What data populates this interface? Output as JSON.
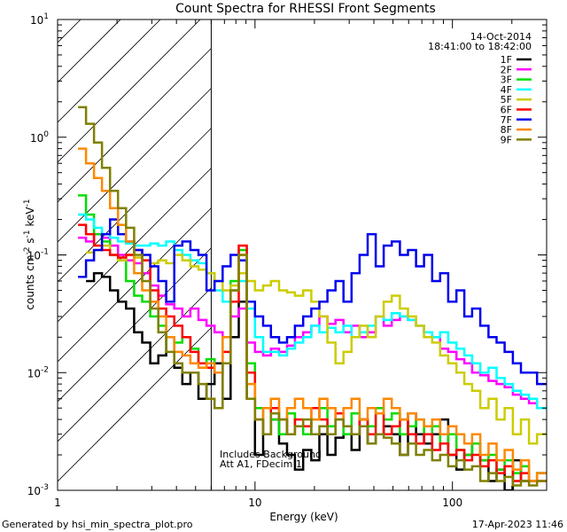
{
  "chart_data": {
    "type": "line",
    "title": "Count Spectra for RHESSI Front Segments",
    "xlabel": "Energy (keV)",
    "ylabel": "counts cm",
    "ylabel_parts": [
      "counts cm",
      "-2",
      " s",
      "-1",
      " keV",
      "-1"
    ],
    "x_scale": "log",
    "y_scale": "log",
    "xlim": [
      1,
      300
    ],
    "ylim": [
      0.001,
      10
    ],
    "x_ticks": [
      {
        "value": 1,
        "label": "1"
      },
      {
        "value": 10,
        "label": "10"
      },
      {
        "value": 100,
        "label": "100"
      }
    ],
    "y_ticks": [
      {
        "value": 0.001,
        "base": "10",
        "exp": "-3"
      },
      {
        "value": 0.01,
        "base": "10",
        "exp": "-2"
      },
      {
        "value": 0.1,
        "base": "10",
        "exp": "-1"
      },
      {
        "value": 1,
        "base": "10",
        "exp": "0"
      },
      {
        "value": 10,
        "base": "10",
        "exp": "1"
      }
    ],
    "date": "14-Oct-2014",
    "time_range": "18:41:00 to 18:42:00",
    "excluded_range_keV": [
      1,
      6
    ],
    "vertical_line_keV": 6,
    "annotations": [
      "Includes Background",
      "Att A1, FDecim 1"
    ],
    "footer_left": "Generated by hsi_min_spectra_plot.pro",
    "footer_right": "17-Apr-2023 11:46",
    "series": [
      {
        "name": "1F",
        "color": "#000000",
        "x": [
          1.33,
          1.46,
          1.6,
          1.76,
          1.93,
          2.12,
          2.33,
          2.56,
          2.81,
          3.09,
          3.39,
          3.72,
          4.09,
          4.49,
          4.93,
          5.42,
          5.95,
          6.54,
          7.18,
          7.89,
          8.67,
          9.52,
          10.5,
          11.5,
          12.6,
          13.9,
          15.2,
          16.7,
          18.4,
          20.2,
          22.2,
          24.4,
          26.8,
          29.4,
          32.3,
          35.5,
          39,
          42.8,
          47,
          51.7,
          56.8,
          62.4,
          68.5,
          75.3,
          82.7,
          90.8,
          99.8,
          110,
          120,
          132,
          145,
          160,
          175,
          193,
          212,
          233,
          256,
          281,
          300
        ],
        "y": [
          null,
          0.06,
          0.07,
          0.065,
          0.05,
          0.04,
          0.035,
          0.022,
          0.018,
          0.012,
          0.014,
          0.02,
          0.011,
          0.008,
          0.01,
          0.006,
          0.008,
          0.012,
          0.006,
          0.02,
          0.04,
          0.006,
          0.002,
          0.003,
          0.004,
          0.0025,
          0.002,
          0.0015,
          0.0022,
          0.0018,
          0.003,
          0.002,
          0.0028,
          0.003,
          0.0022,
          0.004,
          0.0025,
          0.003,
          0.0035,
          0.003,
          0.002,
          0.0045,
          0.003,
          0.0025,
          0.003,
          0.004,
          0.002,
          0.0015,
          0.002,
          0.0025,
          0.0018,
          0.0012,
          0.0015,
          0.001,
          0.0018,
          0.0012,
          0.0012,
          0.0014,
          0.0014
        ]
      },
      {
        "name": "2F",
        "color": "#ff00ff",
        "x": [
          1.33,
          1.46,
          1.6,
          1.76,
          1.93,
          2.12,
          2.33,
          2.56,
          2.81,
          3.09,
          3.39,
          3.72,
          4.09,
          4.49,
          4.93,
          5.42,
          5.95,
          6.54,
          7.18,
          7.89,
          8.67,
          9.52,
          10.5,
          11.5,
          12.6,
          13.9,
          15.2,
          16.7,
          18.4,
          20.2,
          22.2,
          24.4,
          26.8,
          29.4,
          32.3,
          35.5,
          39,
          42.8,
          47,
          51.7,
          56.8,
          62.4,
          68.5,
          75.3,
          82.7,
          90.8,
          99.8,
          110,
          120,
          132,
          145,
          160,
          175,
          193,
          212,
          233,
          256,
          281,
          300
        ],
        "y": [
          0.14,
          0.13,
          0.15,
          0.14,
          0.12,
          0.1,
          0.09,
          0.085,
          0.07,
          0.055,
          0.045,
          0.038,
          0.035,
          0.03,
          0.035,
          0.028,
          0.025,
          0.022,
          0.02,
          0.03,
          0.035,
          0.018,
          0.015,
          0.014,
          0.016,
          0.015,
          0.017,
          0.02,
          0.022,
          0.025,
          0.03,
          0.026,
          0.028,
          0.022,
          0.025,
          0.02,
          0.022,
          0.03,
          0.025,
          0.028,
          0.03,
          0.028,
          0.025,
          0.022,
          0.02,
          0.016,
          0.015,
          0.013,
          0.012,
          0.01,
          0.0095,
          0.0085,
          0.008,
          0.0075,
          0.0065,
          0.006,
          0.0055,
          0.005,
          0.005
        ]
      },
      {
        "name": "3F",
        "color": "#00dd00",
        "x": [
          1.33,
          1.46,
          1.6,
          1.76,
          1.93,
          2.12,
          2.33,
          2.56,
          2.81,
          3.09,
          3.39,
          3.72,
          4.09,
          4.49,
          4.93,
          5.42,
          5.95,
          6.54,
          7.18,
          7.89,
          8.67,
          9.52,
          10.5,
          11.5,
          12.6,
          13.9,
          15.2,
          16.7,
          18.4,
          20.2,
          22.2,
          24.4,
          26.8,
          29.4,
          32.3,
          35.5,
          39,
          42.8,
          47,
          51.7,
          56.8,
          62.4,
          68.5,
          75.3,
          82.7,
          90.8,
          99.8,
          110,
          120,
          132,
          145,
          160,
          175,
          193,
          212,
          233,
          256,
          281,
          300
        ],
        "y": [
          0.32,
          0.22,
          0.15,
          0.13,
          0.1,
          0.09,
          0.06,
          0.045,
          0.04,
          0.03,
          0.025,
          0.02,
          0.018,
          0.02,
          0.016,
          0.012,
          0.013,
          0.01,
          0.02,
          0.06,
          0.11,
          0.012,
          0.005,
          0.003,
          0.004,
          0.003,
          0.0045,
          0.0035,
          0.003,
          0.004,
          0.005,
          0.0035,
          0.004,
          0.003,
          0.0045,
          0.004,
          0.0035,
          0.005,
          0.004,
          0.0045,
          0.003,
          0.0035,
          0.004,
          0.003,
          0.0035,
          0.0025,
          0.003,
          0.0022,
          0.002,
          0.0025,
          0.0018,
          0.002,
          0.0015,
          0.0018,
          0.0014,
          0.0016,
          0.0012,
          0.0014,
          0.0014
        ]
      },
      {
        "name": "4F",
        "color": "#00ffff",
        "x": [
          1.33,
          1.46,
          1.6,
          1.76,
          1.93,
          2.12,
          2.33,
          2.56,
          2.81,
          3.09,
          3.39,
          3.72,
          4.09,
          4.49,
          4.93,
          5.42,
          5.95,
          6.54,
          7.18,
          7.89,
          8.67,
          9.52,
          10.5,
          11.5,
          12.6,
          13.9,
          15.2,
          16.7,
          18.4,
          20.2,
          22.2,
          24.4,
          26.8,
          29.4,
          32.3,
          35.5,
          39,
          42.8,
          47,
          51.7,
          56.8,
          62.4,
          68.5,
          75.3,
          82.7,
          90.8,
          99.8,
          110,
          120,
          132,
          145,
          160,
          175,
          193,
          212,
          233,
          256,
          281,
          300
        ],
        "y": [
          0.22,
          0.2,
          0.17,
          0.15,
          0.14,
          0.13,
          0.125,
          0.12,
          0.12,
          0.125,
          0.12,
          0.13,
          0.11,
          0.1,
          0.09,
          0.085,
          0.07,
          0.05,
          0.04,
          0.05,
          0.06,
          0.035,
          0.02,
          0.015,
          0.015,
          0.014,
          0.016,
          0.018,
          0.02,
          0.025,
          0.022,
          0.024,
          0.022,
          0.025,
          0.02,
          0.022,
          0.025,
          0.03,
          0.028,
          0.032,
          0.03,
          0.028,
          0.025,
          0.022,
          0.02,
          0.022,
          0.018,
          0.016,
          0.014,
          0.012,
          0.01,
          0.011,
          0.009,
          0.008,
          0.007,
          0.0065,
          0.006,
          0.005,
          0.005
        ]
      },
      {
        "name": "5F",
        "color": "#cccc00",
        "x": [
          1.33,
          1.46,
          1.6,
          1.76,
          1.93,
          2.12,
          2.33,
          2.56,
          2.81,
          3.09,
          3.39,
          3.72,
          4.09,
          4.49,
          4.93,
          5.42,
          5.95,
          6.54,
          7.18,
          7.89,
          8.67,
          9.52,
          10.5,
          11.5,
          12.6,
          13.9,
          15.2,
          16.7,
          18.4,
          20.2,
          22.2,
          24.4,
          26.8,
          29.4,
          32.3,
          35.5,
          39,
          42.8,
          47,
          51.7,
          56.8,
          62.4,
          68.5,
          75.3,
          82.7,
          90.8,
          99.8,
          110,
          120,
          132,
          145,
          160,
          175,
          193,
          212,
          233,
          256,
          281,
          300
        ],
        "y": [
          null,
          0.105,
          0.11,
          0.12,
          0.1,
          0.09,
          0.1,
          0.095,
          0.09,
          0.085,
          0.09,
          0.085,
          0.1,
          0.09,
          0.08,
          0.075,
          0.07,
          0.06,
          0.05,
          0.055,
          0.07,
          0.06,
          0.05,
          0.055,
          0.06,
          0.05,
          0.048,
          0.045,
          0.05,
          0.04,
          0.03,
          0.018,
          0.012,
          0.015,
          0.02,
          0.025,
          0.02,
          0.03,
          0.04,
          0.045,
          0.035,
          0.03,
          0.025,
          0.02,
          0.018,
          0.014,
          0.012,
          0.01,
          0.008,
          0.007,
          0.005,
          0.006,
          0.004,
          0.005,
          0.003,
          0.004,
          0.0025,
          0.003,
          0.003
        ]
      },
      {
        "name": "6F",
        "color": "#ff0000",
        "x": [
          1.33,
          1.46,
          1.6,
          1.76,
          1.93,
          2.12,
          2.33,
          2.56,
          2.81,
          3.09,
          3.39,
          3.72,
          4.09,
          4.49,
          4.93,
          5.42,
          5.95,
          6.54,
          7.18,
          7.89,
          8.67,
          9.52,
          10.5,
          11.5,
          12.6,
          13.9,
          15.2,
          16.7,
          18.4,
          20.2,
          22.2,
          24.4,
          26.8,
          29.4,
          32.3,
          35.5,
          39,
          42.8,
          47,
          51.7,
          56.8,
          62.4,
          68.5,
          75.3,
          82.7,
          90.8,
          99.8,
          110,
          120,
          132,
          145,
          160,
          175,
          193,
          212,
          233,
          256,
          281,
          300
        ],
        "y": [
          0.18,
          0.15,
          0.12,
          0.11,
          0.1,
          0.095,
          0.1,
          0.11,
          0.09,
          0.05,
          0.035,
          0.03,
          0.025,
          0.02,
          0.015,
          0.012,
          0.011,
          0.01,
          0.015,
          0.04,
          0.12,
          0.01,
          0.004,
          0.003,
          0.005,
          0.004,
          0.003,
          0.004,
          0.0035,
          0.005,
          0.004,
          0.003,
          0.0045,
          0.0035,
          0.003,
          0.004,
          0.003,
          0.0045,
          0.003,
          0.0035,
          0.004,
          0.003,
          0.0025,
          0.003,
          0.0022,
          0.0025,
          0.002,
          0.0022,
          0.0018,
          0.002,
          0.0016,
          0.0018,
          0.0014,
          0.0016,
          0.0012,
          0.0014,
          0.0012,
          0.0012,
          0.0012
        ]
      },
      {
        "name": "7F",
        "color": "#0000ee",
        "x": [
          1.33,
          1.46,
          1.6,
          1.76,
          1.93,
          2.12,
          2.33,
          2.56,
          2.81,
          3.09,
          3.39,
          3.72,
          4.09,
          4.49,
          4.93,
          5.42,
          5.95,
          6.54,
          7.18,
          7.89,
          8.67,
          9.52,
          10.5,
          11.5,
          12.6,
          13.9,
          15.2,
          16.7,
          18.4,
          20.2,
          22.2,
          24.4,
          26.8,
          29.4,
          32.3,
          35.5,
          39,
          42.8,
          47,
          51.7,
          56.8,
          62.4,
          68.5,
          75.3,
          82.7,
          90.8,
          99.8,
          110,
          120,
          132,
          145,
          160,
          175,
          193,
          212,
          233,
          256,
          281,
          300
        ],
        "y": [
          0.065,
          0.09,
          0.11,
          0.15,
          0.2,
          0.15,
          0.13,
          0.11,
          0.1,
          0.08,
          0.06,
          0.04,
          0.12,
          0.13,
          0.11,
          0.1,
          0.05,
          0.06,
          0.08,
          0.1,
          0.09,
          0.04,
          0.03,
          0.025,
          0.02,
          0.018,
          0.02,
          0.025,
          0.03,
          0.035,
          0.04,
          0.05,
          0.06,
          0.04,
          0.07,
          0.1,
          0.15,
          0.08,
          0.12,
          0.13,
          0.1,
          0.11,
          0.08,
          0.1,
          0.06,
          0.07,
          0.04,
          0.05,
          0.03,
          0.035,
          0.025,
          0.02,
          0.018,
          0.015,
          0.012,
          0.01,
          0.01,
          0.008,
          0.008
        ]
      },
      {
        "name": "8F",
        "color": "#ff8800",
        "x": [
          1.33,
          1.46,
          1.6,
          1.76,
          1.93,
          2.12,
          2.33,
          2.56,
          2.81,
          3.09,
          3.39,
          3.72,
          4.09,
          4.49,
          4.93,
          5.42,
          5.95,
          6.54,
          7.18,
          7.89,
          8.67,
          9.52,
          10.5,
          11.5,
          12.6,
          13.9,
          15.2,
          16.7,
          18.4,
          20.2,
          22.2,
          24.4,
          26.8,
          29.4,
          32.3,
          35.5,
          39,
          42.8,
          47,
          51.7,
          56.8,
          62.4,
          68.5,
          75.3,
          82.7,
          90.8,
          99.8,
          110,
          120,
          132,
          145,
          160,
          175,
          193,
          212,
          233,
          256,
          281,
          300
        ],
        "y": [
          0.8,
          0.6,
          0.45,
          0.35,
          0.25,
          0.18,
          0.13,
          0.07,
          0.05,
          0.04,
          0.03,
          0.02,
          0.015,
          0.014,
          0.012,
          0.011,
          0.012,
          0.01,
          0.02,
          0.05,
          0.1,
          0.008,
          0.004,
          0.005,
          0.006,
          0.004,
          0.005,
          0.006,
          0.005,
          0.004,
          0.006,
          0.005,
          0.004,
          0.005,
          0.006,
          0.004,
          0.005,
          0.0045,
          0.006,
          0.005,
          0.004,
          0.0045,
          0.004,
          0.0035,
          0.004,
          0.003,
          0.0035,
          0.003,
          0.0025,
          0.003,
          0.002,
          0.0025,
          0.0018,
          0.0022,
          0.0015,
          0.0018,
          0.0012,
          0.0014,
          0.0014
        ]
      },
      {
        "name": "9F",
        "color": "#808000",
        "x": [
          1.33,
          1.46,
          1.6,
          1.76,
          1.93,
          2.12,
          2.33,
          2.56,
          2.81,
          3.09,
          3.39,
          3.72,
          4.09,
          4.49,
          4.93,
          5.42,
          5.95,
          6.54,
          7.18,
          7.89,
          8.67,
          9.52,
          10.5,
          11.5,
          12.6,
          13.9,
          15.2,
          16.7,
          18.4,
          20.2,
          22.2,
          24.4,
          26.8,
          29.4,
          32.3,
          35.5,
          39,
          42.8,
          47,
          51.7,
          56.8,
          62.4,
          68.5,
          75.3,
          82.7,
          90.8,
          99.8,
          110,
          120,
          132,
          145,
          160,
          175,
          193,
          212,
          233,
          256,
          281,
          300
        ],
        "y": [
          1.8,
          1.3,
          0.9,
          0.55,
          0.35,
          0.25,
          0.17,
          0.1,
          0.06,
          0.035,
          0.022,
          0.015,
          0.012,
          0.01,
          0.01,
          0.008,
          0.006,
          0.005,
          0.012,
          0.05,
          0.1,
          0.006,
          0.004,
          0.003,
          0.0045,
          0.004,
          0.003,
          0.0035,
          0.004,
          0.003,
          0.0035,
          0.003,
          0.004,
          0.0035,
          0.003,
          0.0035,
          0.0025,
          0.003,
          0.0028,
          0.0025,
          0.002,
          0.0025,
          0.002,
          0.0022,
          0.0018,
          0.002,
          0.0016,
          0.0018,
          0.0015,
          0.0016,
          0.0012,
          0.0014,
          0.0012,
          0.0013,
          0.0011,
          0.0012,
          0.0011,
          0.0012,
          0.0012
        ]
      }
    ]
  }
}
